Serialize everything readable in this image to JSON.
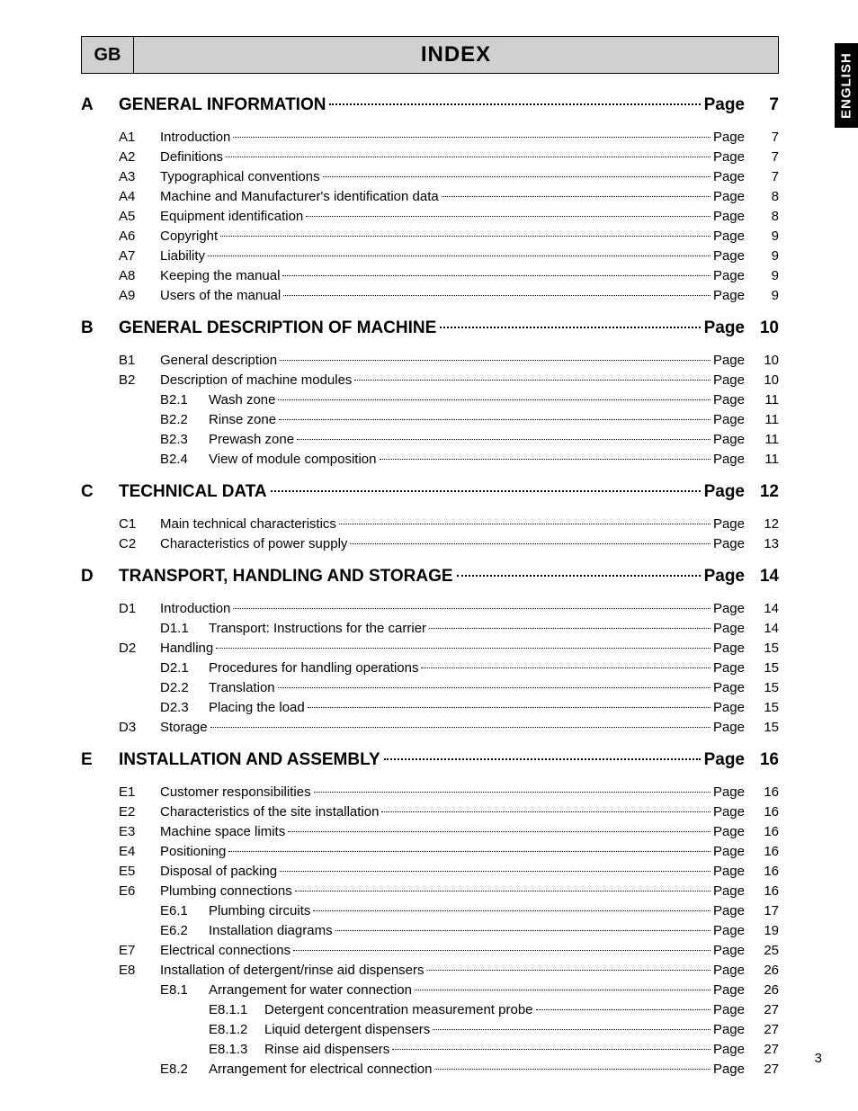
{
  "side_tab": "ENGLISH",
  "header": {
    "lang": "GB",
    "title": "INDEX"
  },
  "page_word": "Page",
  "footer_page": "3",
  "sections": [
    {
      "letter": "A",
      "title": "GENERAL INFORMATION",
      "page": "7",
      "items": [
        {
          "code": "A1",
          "text": "Introduction",
          "page": "7"
        },
        {
          "code": "A2",
          "text": "Definitions",
          "page": "7"
        },
        {
          "code": "A3",
          "text": "Typographical conventions",
          "page": "7"
        },
        {
          "code": "A4",
          "text": "Machine and Manufacturer's identification data",
          "page": "8"
        },
        {
          "code": "A5",
          "text": "Equipment identification",
          "page": "8"
        },
        {
          "code": "A6",
          "text": "Copyright",
          "page": "9"
        },
        {
          "code": "A7",
          "text": "Liability",
          "page": "9"
        },
        {
          "code": "A8",
          "text": "Keeping the manual",
          "page": "9"
        },
        {
          "code": "A9",
          "text": "Users of the manual",
          "page": "9"
        }
      ]
    },
    {
      "letter": "B",
      "title": "GENERAL DESCRIPTION OF MACHINE",
      "page": "10",
      "items": [
        {
          "code": "B1",
          "text": "General description",
          "page": "10"
        },
        {
          "code": "B2",
          "text": "Description of machine modules",
          "page": "10",
          "subs": [
            {
              "code": "B2.1",
              "text": "Wash zone",
              "page": "11"
            },
            {
              "code": "B2.2",
              "text": "Rinse zone",
              "page": "11"
            },
            {
              "code": "B2.3",
              "text": "Prewash zone",
              "page": "11"
            },
            {
              "code": "B2.4",
              "text": "View of module composition",
              "page": "11"
            }
          ]
        }
      ]
    },
    {
      "letter": "C",
      "title": "TECHNICAL DATA",
      "page": "12",
      "items": [
        {
          "code": "C1",
          "text": "Main technical characteristics",
          "page": "12"
        },
        {
          "code": "C2",
          "text": "Characteristics of power supply",
          "page": "13"
        }
      ]
    },
    {
      "letter": "D",
      "title": "TRANSPORT, HANDLING AND STORAGE",
      "page": "14",
      "items": [
        {
          "code": "D1",
          "text": "Introduction",
          "page": "14",
          "subs": [
            {
              "code": "D1.1",
              "text": "Transport: Instructions for the carrier",
              "page": "14"
            }
          ]
        },
        {
          "code": "D2",
          "text": "Handling",
          "page": "15",
          "subs": [
            {
              "code": "D2.1",
              "text": "Procedures for handling operations",
              "page": "15"
            },
            {
              "code": "D2.2",
              "text": "Translation",
              "page": "15"
            },
            {
              "code": "D2.3",
              "text": "Placing the load",
              "page": "15"
            }
          ]
        },
        {
          "code": "D3",
          "text": "Storage",
          "page": "15"
        }
      ]
    },
    {
      "letter": "E",
      "title": "INSTALLATION AND ASSEMBLY",
      "page": "16",
      "items": [
        {
          "code": "E1",
          "text": "Customer responsibilities",
          "page": "16"
        },
        {
          "code": "E2",
          "text": "Characteristics of the site installation",
          "page": "16"
        },
        {
          "code": "E3",
          "text": "Machine space limits",
          "page": "16"
        },
        {
          "code": "E4",
          "text": "Positioning",
          "page": "16"
        },
        {
          "code": "E5",
          "text": "Disposal of packing",
          "page": "16"
        },
        {
          "code": "E6",
          "text": "Plumbing connections",
          "page": "16",
          "subs": [
            {
              "code": "E6.1",
              "text": "Plumbing circuits",
              "page": "17"
            },
            {
              "code": "E6.2",
              "text": "Installation diagrams",
              "page": "19"
            }
          ]
        },
        {
          "code": "E7",
          "text": "Electrical connections",
          "page": "25"
        },
        {
          "code": "E8",
          "text": "Installation of detergent/rinse aid dispensers",
          "page": "26",
          "subs": [
            {
              "code": "E8.1",
              "text": "Arrangement for water connection",
              "page": "26",
              "subsubs": [
                {
                  "code": "E8.1.1",
                  "text": "Detergent concentration measurement probe",
                  "page": "27"
                },
                {
                  "code": "E8.1.2",
                  "text": "Liquid detergent dispensers",
                  "page": "27"
                },
                {
                  "code": "E8.1.3",
                  "text": "Rinse aid dispensers",
                  "page": "27"
                }
              ]
            },
            {
              "code": "E8.2",
              "text": "Arrangement for electrical connection",
              "page": "27"
            }
          ]
        }
      ]
    }
  ]
}
